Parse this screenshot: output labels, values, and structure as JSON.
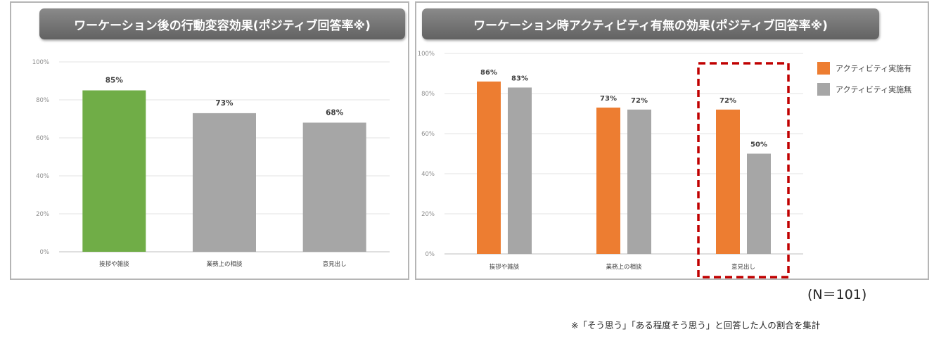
{
  "colors": {
    "orange": "#ed7d31",
    "gray": "#a6a6a6",
    "green": "#70ad47",
    "highlight": "#c00000",
    "banner": "#707070"
  },
  "footer": {
    "sample_note": "(N＝101)",
    "footnote": "※「そう思う」「ある程度そう思う」と回答した人の割合を集計"
  },
  "chart_data": [
    {
      "type": "bar",
      "title": "ワーケーション後の行動変容効果(ポジティブ回答率※)",
      "categories": [
        "挨拶や雑談",
        "業務上の相談",
        "意見出し"
      ],
      "values": [
        85,
        73,
        68
      ],
      "value_labels": [
        "85%",
        "73%",
        "68%"
      ],
      "bar_colors": [
        "green",
        "gray",
        "gray"
      ],
      "yticks": [
        "0%",
        "20%",
        "40%",
        "60%",
        "80%",
        "100%"
      ],
      "ylim": [
        0,
        100
      ],
      "grid": true
    },
    {
      "type": "bar",
      "title": "ワーケーション時アクティビティ有無の効果(ポジティブ回答率※)",
      "categories": [
        "挨拶や雑談",
        "業務上の相談",
        "意見出し"
      ],
      "series": [
        {
          "name": "アクティビティ実施有",
          "values": [
            86,
            73,
            72
          ],
          "labels": [
            "86%",
            "73%",
            "72%"
          ],
          "color": "orange"
        },
        {
          "name": "アクティビティ実施無",
          "values": [
            83,
            72,
            50
          ],
          "labels": [
            "83%",
            "72%",
            "50%"
          ],
          "color": "gray"
        }
      ],
      "yticks": [
        "0%",
        "20%",
        "40%",
        "60%",
        "80%",
        "100%"
      ],
      "ylim": [
        0,
        100
      ],
      "grid": true,
      "legend_position": "top-right",
      "highlighted_category": "意見出し"
    }
  ]
}
